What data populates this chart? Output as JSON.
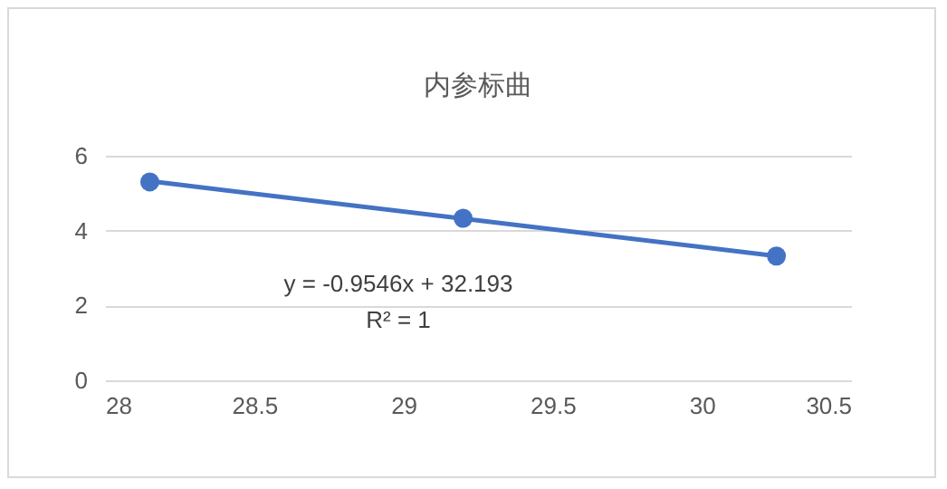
{
  "chart_data": {
    "type": "scatter",
    "title": "内参标曲",
    "annotations": [
      "y = -0.9546x + 32.193",
      "R² = 1"
    ],
    "series": [
      {
        "color": "#4472c4",
        "marker": "circle",
        "x": [
          28.15,
          29.2,
          30.25
        ],
        "values": [
          5.3,
          4.33,
          3.32
        ]
      },
      {
        "type": "line",
        "color": "#4472c4",
        "x": [
          28.15,
          30.25
        ],
        "values": [
          5.32,
          3.32
        ]
      }
    ],
    "xlim": [
      28,
      30.5
    ],
    "xticks": [
      28,
      28.5,
      29,
      29.5,
      30,
      30.5
    ],
    "ylim": [
      0,
      6
    ],
    "yticks": [
      0,
      2,
      4,
      6
    ],
    "grid": "y",
    "legend": false
  }
}
